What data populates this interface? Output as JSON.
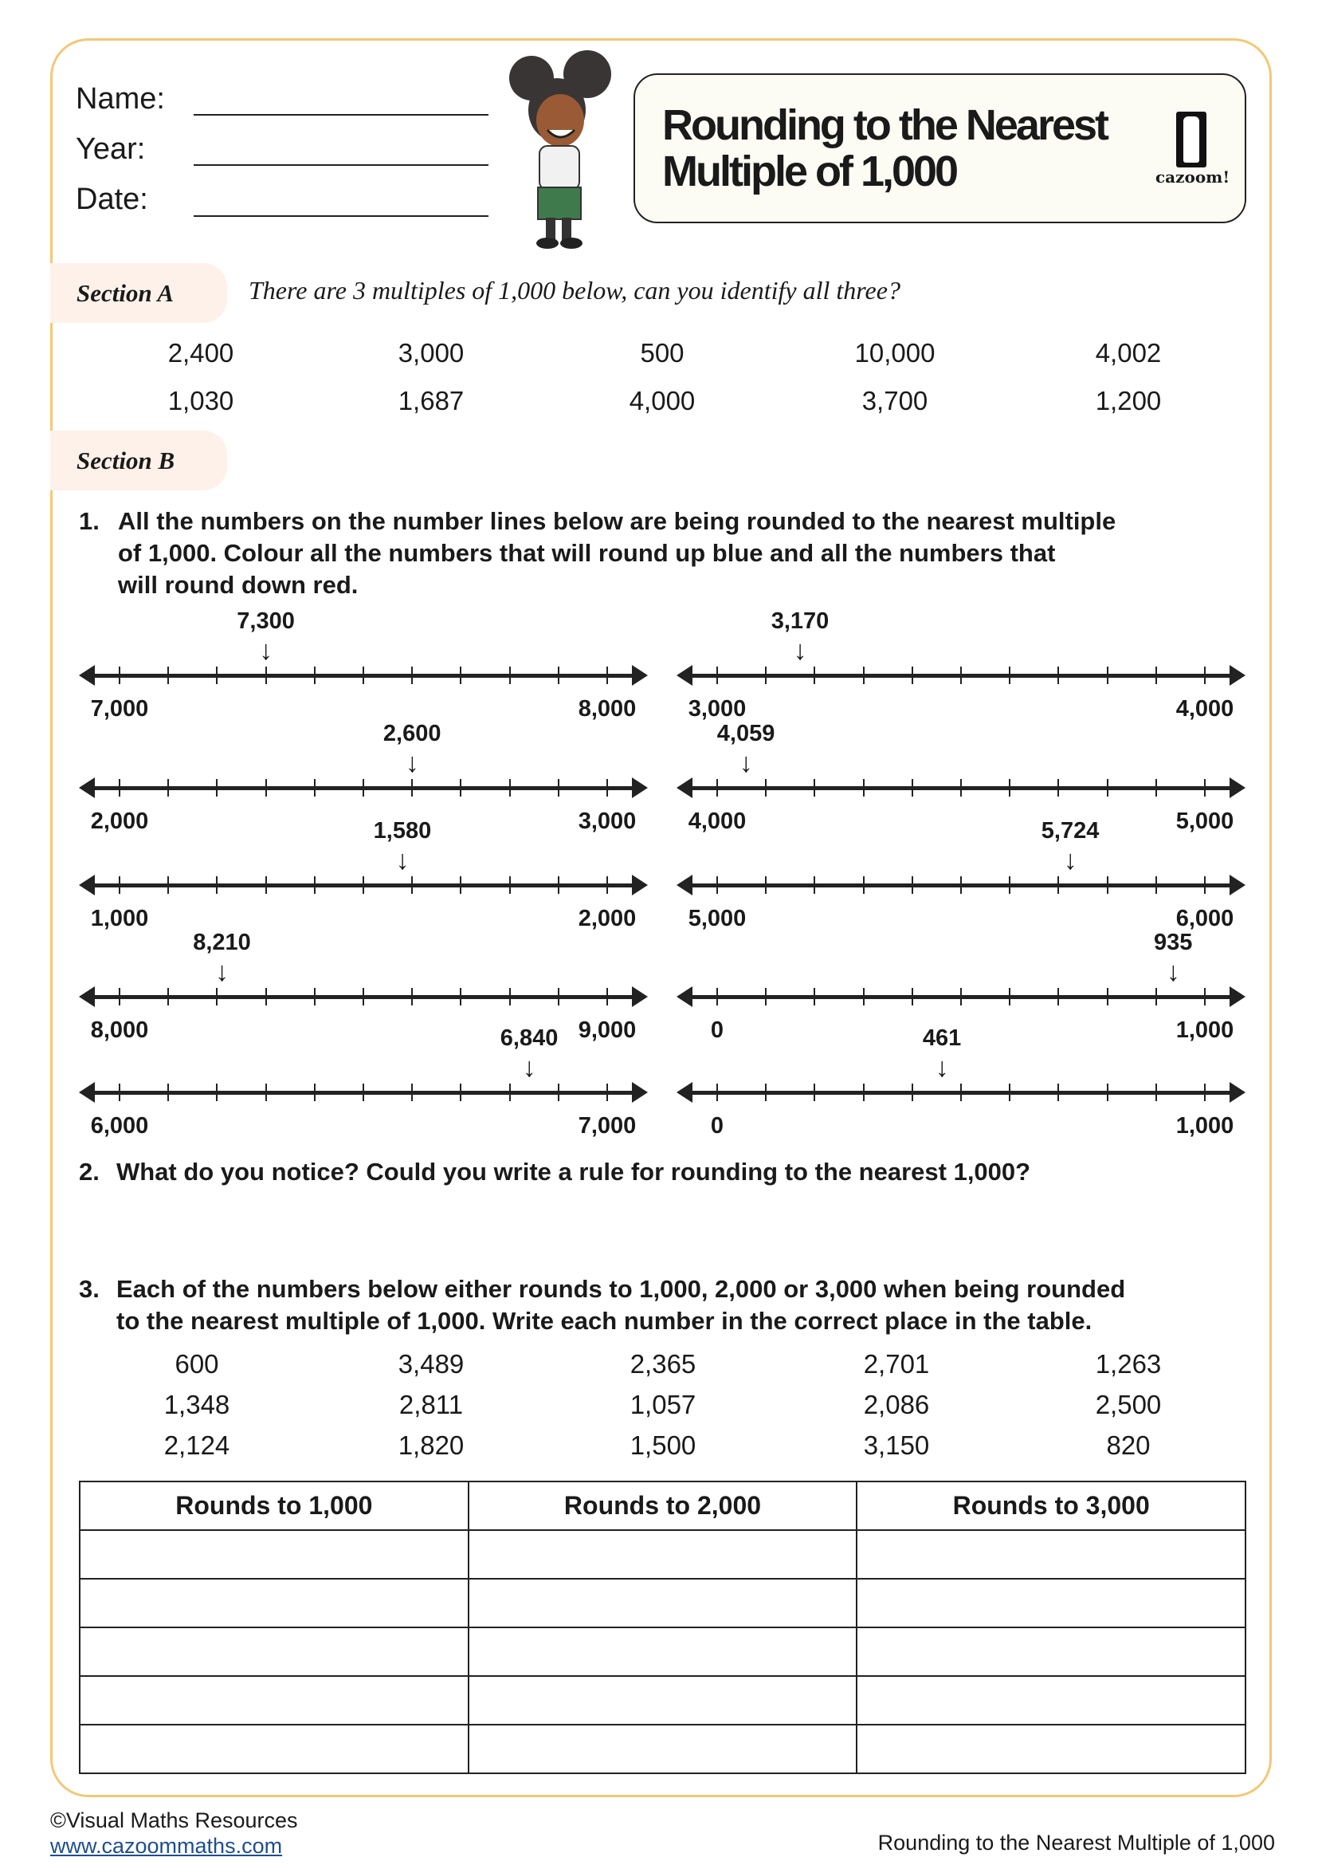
{
  "header": {
    "name_label": "Name:",
    "year_label": "Year:",
    "date_label": "Date:",
    "title_line1": "Rounding to the Nearest",
    "title_line2": "Multiple of 1,000",
    "logo_text": "cazoom!"
  },
  "colors": {
    "frame": "#f2c877",
    "section_pill": "#fdf1ea",
    "link": "#1f4e8c"
  },
  "section_a": {
    "label": "Section A",
    "question": "There are 3 multiples of 1,000 below, can you identify all three?",
    "rows": [
      [
        "2,400",
        "3,000",
        "500",
        "10,000",
        "4,002"
      ],
      [
        "1,030",
        "1,687",
        "4,000",
        "3,700",
        "1,200"
      ]
    ]
  },
  "section_b": {
    "label": "Section B",
    "q1_number": "1.",
    "q1_lines": [
      "All the numbers on the number lines below are being rounded to the nearest multiple",
      "of 1,000. Colour all the numbers that will round up blue and all the numbers that",
      "will round down red."
    ],
    "number_lines": {
      "left": [
        {
          "start": "7,000",
          "end": "8,000",
          "marker": "7,300",
          "start_value": 7000,
          "end_value": 8000,
          "marker_value": 7300
        },
        {
          "start": "2,000",
          "end": "3,000",
          "marker": "2,600",
          "start_value": 2000,
          "end_value": 3000,
          "marker_value": 2600
        },
        {
          "start": "1,000",
          "end": "2,000",
          "marker": "1,580",
          "start_value": 1000,
          "end_value": 2000,
          "marker_value": 1580
        },
        {
          "start": "8,000",
          "end": "9,000",
          "marker": "8,210",
          "start_value": 8000,
          "end_value": 9000,
          "marker_value": 8210
        },
        {
          "start": "6,000",
          "end": "7,000",
          "marker": "6,840",
          "start_value": 6000,
          "end_value": 7000,
          "marker_value": 6840
        }
      ],
      "right": [
        {
          "start": "3,000",
          "end": "4,000",
          "marker": "3,170",
          "start_value": 3000,
          "end_value": 4000,
          "marker_value": 3170
        },
        {
          "start": "4,000",
          "end": "5,000",
          "marker": "4,059",
          "start_value": 4000,
          "end_value": 5000,
          "marker_value": 4059
        },
        {
          "start": "5,000",
          "end": "6,000",
          "marker": "5,724",
          "start_value": 5000,
          "end_value": 6000,
          "marker_value": 5724
        },
        {
          "start": "0",
          "end": "1,000",
          "marker": "935",
          "start_value": 0,
          "end_value": 1000,
          "marker_value": 935
        },
        {
          "start": "0",
          "end": "1,000",
          "marker": "461",
          "start_value": 0,
          "end_value": 1000,
          "marker_value": 461
        }
      ]
    },
    "q2_number": "2.",
    "q2": "What do you notice? Could you write a rule for rounding to the nearest 1,000?",
    "q3_number": "3.",
    "q3_lines": [
      "Each of the numbers below either rounds to 1,000, 2,000 or 3,000 when being rounded",
      "to the nearest multiple of 1,000. Write each number in the correct place in the table."
    ],
    "q3_rows": [
      [
        "600",
        "3,489",
        "2,365",
        "2,701",
        "1,263"
      ],
      [
        "1,348",
        "2,811",
        "1,057",
        "2,086",
        "2,500"
      ],
      [
        "2,124",
        "1,820",
        "1,500",
        "3,150",
        "820"
      ]
    ],
    "table_headers": [
      "Rounds to 1,000",
      "Rounds to 2,000",
      "Rounds to 3,000"
    ]
  },
  "footer": {
    "copyright": "©Visual Maths Resources",
    "link": "www.cazoommaths.com",
    "doc_title": "Rounding to the Nearest Multiple of 1,000"
  }
}
